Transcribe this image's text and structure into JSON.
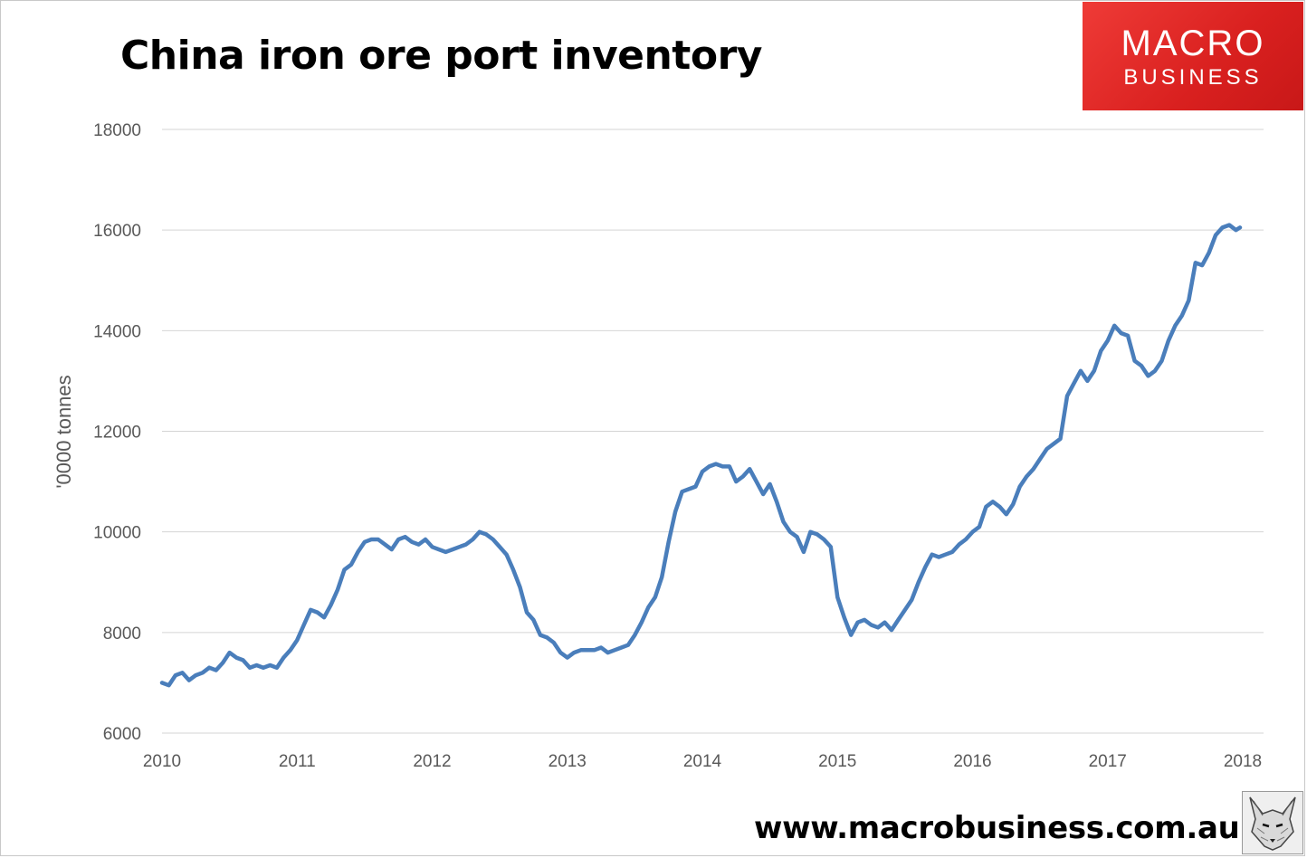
{
  "header": {
    "title": "China iron ore port inventory"
  },
  "logo": {
    "line1": "MACRO",
    "line2": "BUSINESS",
    "bg_color": "#e02a28"
  },
  "footer": {
    "url": "www.macrobusiness.com.au"
  },
  "chart_data": {
    "type": "line",
    "title": "China iron ore port inventory",
    "xlabel": "",
    "ylabel": "'0000 tonnes",
    "xlim": [
      2010,
      2018
    ],
    "ylim": [
      6000,
      18000
    ],
    "x_ticks": [
      "2010",
      "2011",
      "2012",
      "2013",
      "2014",
      "2015",
      "2016",
      "2017",
      "2018"
    ],
    "y_ticks": [
      "6000",
      "8000",
      "10000",
      "12000",
      "14000",
      "16000",
      "18000"
    ],
    "grid": "horizontal",
    "legend": "none",
    "series": [
      {
        "color": "#4a7ebb",
        "points": [
          [
            2010.0,
            7000
          ],
          [
            2010.05,
            6950
          ],
          [
            2010.1,
            7150
          ],
          [
            2010.15,
            7200
          ],
          [
            2010.2,
            7050
          ],
          [
            2010.25,
            7150
          ],
          [
            2010.3,
            7200
          ],
          [
            2010.35,
            7300
          ],
          [
            2010.4,
            7250
          ],
          [
            2010.45,
            7400
          ],
          [
            2010.5,
            7600
          ],
          [
            2010.55,
            7500
          ],
          [
            2010.6,
            7450
          ],
          [
            2010.65,
            7300
          ],
          [
            2010.7,
            7350
          ],
          [
            2010.75,
            7300
          ],
          [
            2010.8,
            7350
          ],
          [
            2010.85,
            7300
          ],
          [
            2010.9,
            7500
          ],
          [
            2010.95,
            7650
          ],
          [
            2011.0,
            7850
          ],
          [
            2011.05,
            8150
          ],
          [
            2011.1,
            8450
          ],
          [
            2011.15,
            8400
          ],
          [
            2011.2,
            8300
          ],
          [
            2011.25,
            8550
          ],
          [
            2011.3,
            8850
          ],
          [
            2011.35,
            9250
          ],
          [
            2011.4,
            9350
          ],
          [
            2011.45,
            9600
          ],
          [
            2011.5,
            9800
          ],
          [
            2011.55,
            9850
          ],
          [
            2011.6,
            9850
          ],
          [
            2011.65,
            9750
          ],
          [
            2011.7,
            9650
          ],
          [
            2011.75,
            9850
          ],
          [
            2011.8,
            9900
          ],
          [
            2011.85,
            9800
          ],
          [
            2011.9,
            9750
          ],
          [
            2011.95,
            9850
          ],
          [
            2012.0,
            9700
          ],
          [
            2012.05,
            9650
          ],
          [
            2012.1,
            9600
          ],
          [
            2012.15,
            9650
          ],
          [
            2012.2,
            9700
          ],
          [
            2012.25,
            9750
          ],
          [
            2012.3,
            9850
          ],
          [
            2012.35,
            10000
          ],
          [
            2012.4,
            9950
          ],
          [
            2012.45,
            9850
          ],
          [
            2012.5,
            9700
          ],
          [
            2012.55,
            9550
          ],
          [
            2012.6,
            9250
          ],
          [
            2012.65,
            8900
          ],
          [
            2012.7,
            8400
          ],
          [
            2012.75,
            8250
          ],
          [
            2012.8,
            7950
          ],
          [
            2012.85,
            7900
          ],
          [
            2012.9,
            7800
          ],
          [
            2012.95,
            7600
          ],
          [
            2013.0,
            7500
          ],
          [
            2013.05,
            7600
          ],
          [
            2013.1,
            7650
          ],
          [
            2013.15,
            7650
          ],
          [
            2013.2,
            7650
          ],
          [
            2013.25,
            7700
          ],
          [
            2013.3,
            7600
          ],
          [
            2013.35,
            7650
          ],
          [
            2013.4,
            7700
          ],
          [
            2013.45,
            7750
          ],
          [
            2013.5,
            7950
          ],
          [
            2013.55,
            8200
          ],
          [
            2013.6,
            8500
          ],
          [
            2013.65,
            8700
          ],
          [
            2013.7,
            9100
          ],
          [
            2013.75,
            9800
          ],
          [
            2013.8,
            10400
          ],
          [
            2013.85,
            10800
          ],
          [
            2013.9,
            10850
          ],
          [
            2013.95,
            10900
          ],
          [
            2014.0,
            11200
          ],
          [
            2014.05,
            11300
          ],
          [
            2014.1,
            11350
          ],
          [
            2014.15,
            11300
          ],
          [
            2014.2,
            11300
          ],
          [
            2014.25,
            11000
          ],
          [
            2014.3,
            11100
          ],
          [
            2014.35,
            11250
          ],
          [
            2014.4,
            11000
          ],
          [
            2014.45,
            10750
          ],
          [
            2014.5,
            10950
          ],
          [
            2014.55,
            10600
          ],
          [
            2014.6,
            10200
          ],
          [
            2014.65,
            10000
          ],
          [
            2014.7,
            9900
          ],
          [
            2014.75,
            9600
          ],
          [
            2014.8,
            10000
          ],
          [
            2014.85,
            9950
          ],
          [
            2014.9,
            9850
          ],
          [
            2014.95,
            9700
          ],
          [
            2015.0,
            8700
          ],
          [
            2015.05,
            8300
          ],
          [
            2015.1,
            7950
          ],
          [
            2015.15,
            8200
          ],
          [
            2015.2,
            8250
          ],
          [
            2015.25,
            8150
          ],
          [
            2015.3,
            8100
          ],
          [
            2015.35,
            8200
          ],
          [
            2015.4,
            8050
          ],
          [
            2015.45,
            8250
          ],
          [
            2015.5,
            8450
          ],
          [
            2015.55,
            8650
          ],
          [
            2015.6,
            9000
          ],
          [
            2015.65,
            9300
          ],
          [
            2015.7,
            9550
          ],
          [
            2015.75,
            9500
          ],
          [
            2015.8,
            9550
          ],
          [
            2015.85,
            9600
          ],
          [
            2015.9,
            9750
          ],
          [
            2015.95,
            9850
          ],
          [
            2016.0,
            10000
          ],
          [
            2016.05,
            10100
          ],
          [
            2016.1,
            10500
          ],
          [
            2016.15,
            10600
          ],
          [
            2016.2,
            10500
          ],
          [
            2016.25,
            10350
          ],
          [
            2016.3,
            10550
          ],
          [
            2016.35,
            10900
          ],
          [
            2016.4,
            11100
          ],
          [
            2016.45,
            11250
          ],
          [
            2016.5,
            11450
          ],
          [
            2016.55,
            11650
          ],
          [
            2016.6,
            11750
          ],
          [
            2016.65,
            11850
          ],
          [
            2016.7,
            12700
          ],
          [
            2016.75,
            12950
          ],
          [
            2016.8,
            13200
          ],
          [
            2016.85,
            13000
          ],
          [
            2016.9,
            13200
          ],
          [
            2016.95,
            13600
          ],
          [
            2017.0,
            13800
          ],
          [
            2017.05,
            14100
          ],
          [
            2017.1,
            13950
          ],
          [
            2017.15,
            13900
          ],
          [
            2017.2,
            13400
          ],
          [
            2017.25,
            13300
          ],
          [
            2017.3,
            13100
          ],
          [
            2017.35,
            13200
          ],
          [
            2017.4,
            13400
          ],
          [
            2017.45,
            13800
          ],
          [
            2017.5,
            14100
          ],
          [
            2017.55,
            14300
          ],
          [
            2017.6,
            14600
          ],
          [
            2017.65,
            15350
          ],
          [
            2017.7,
            15300
          ],
          [
            2017.75,
            15550
          ],
          [
            2017.8,
            15900
          ],
          [
            2017.85,
            16050
          ],
          [
            2017.9,
            16100
          ],
          [
            2017.95,
            16000
          ],
          [
            2017.98,
            16050
          ]
        ]
      }
    ]
  }
}
